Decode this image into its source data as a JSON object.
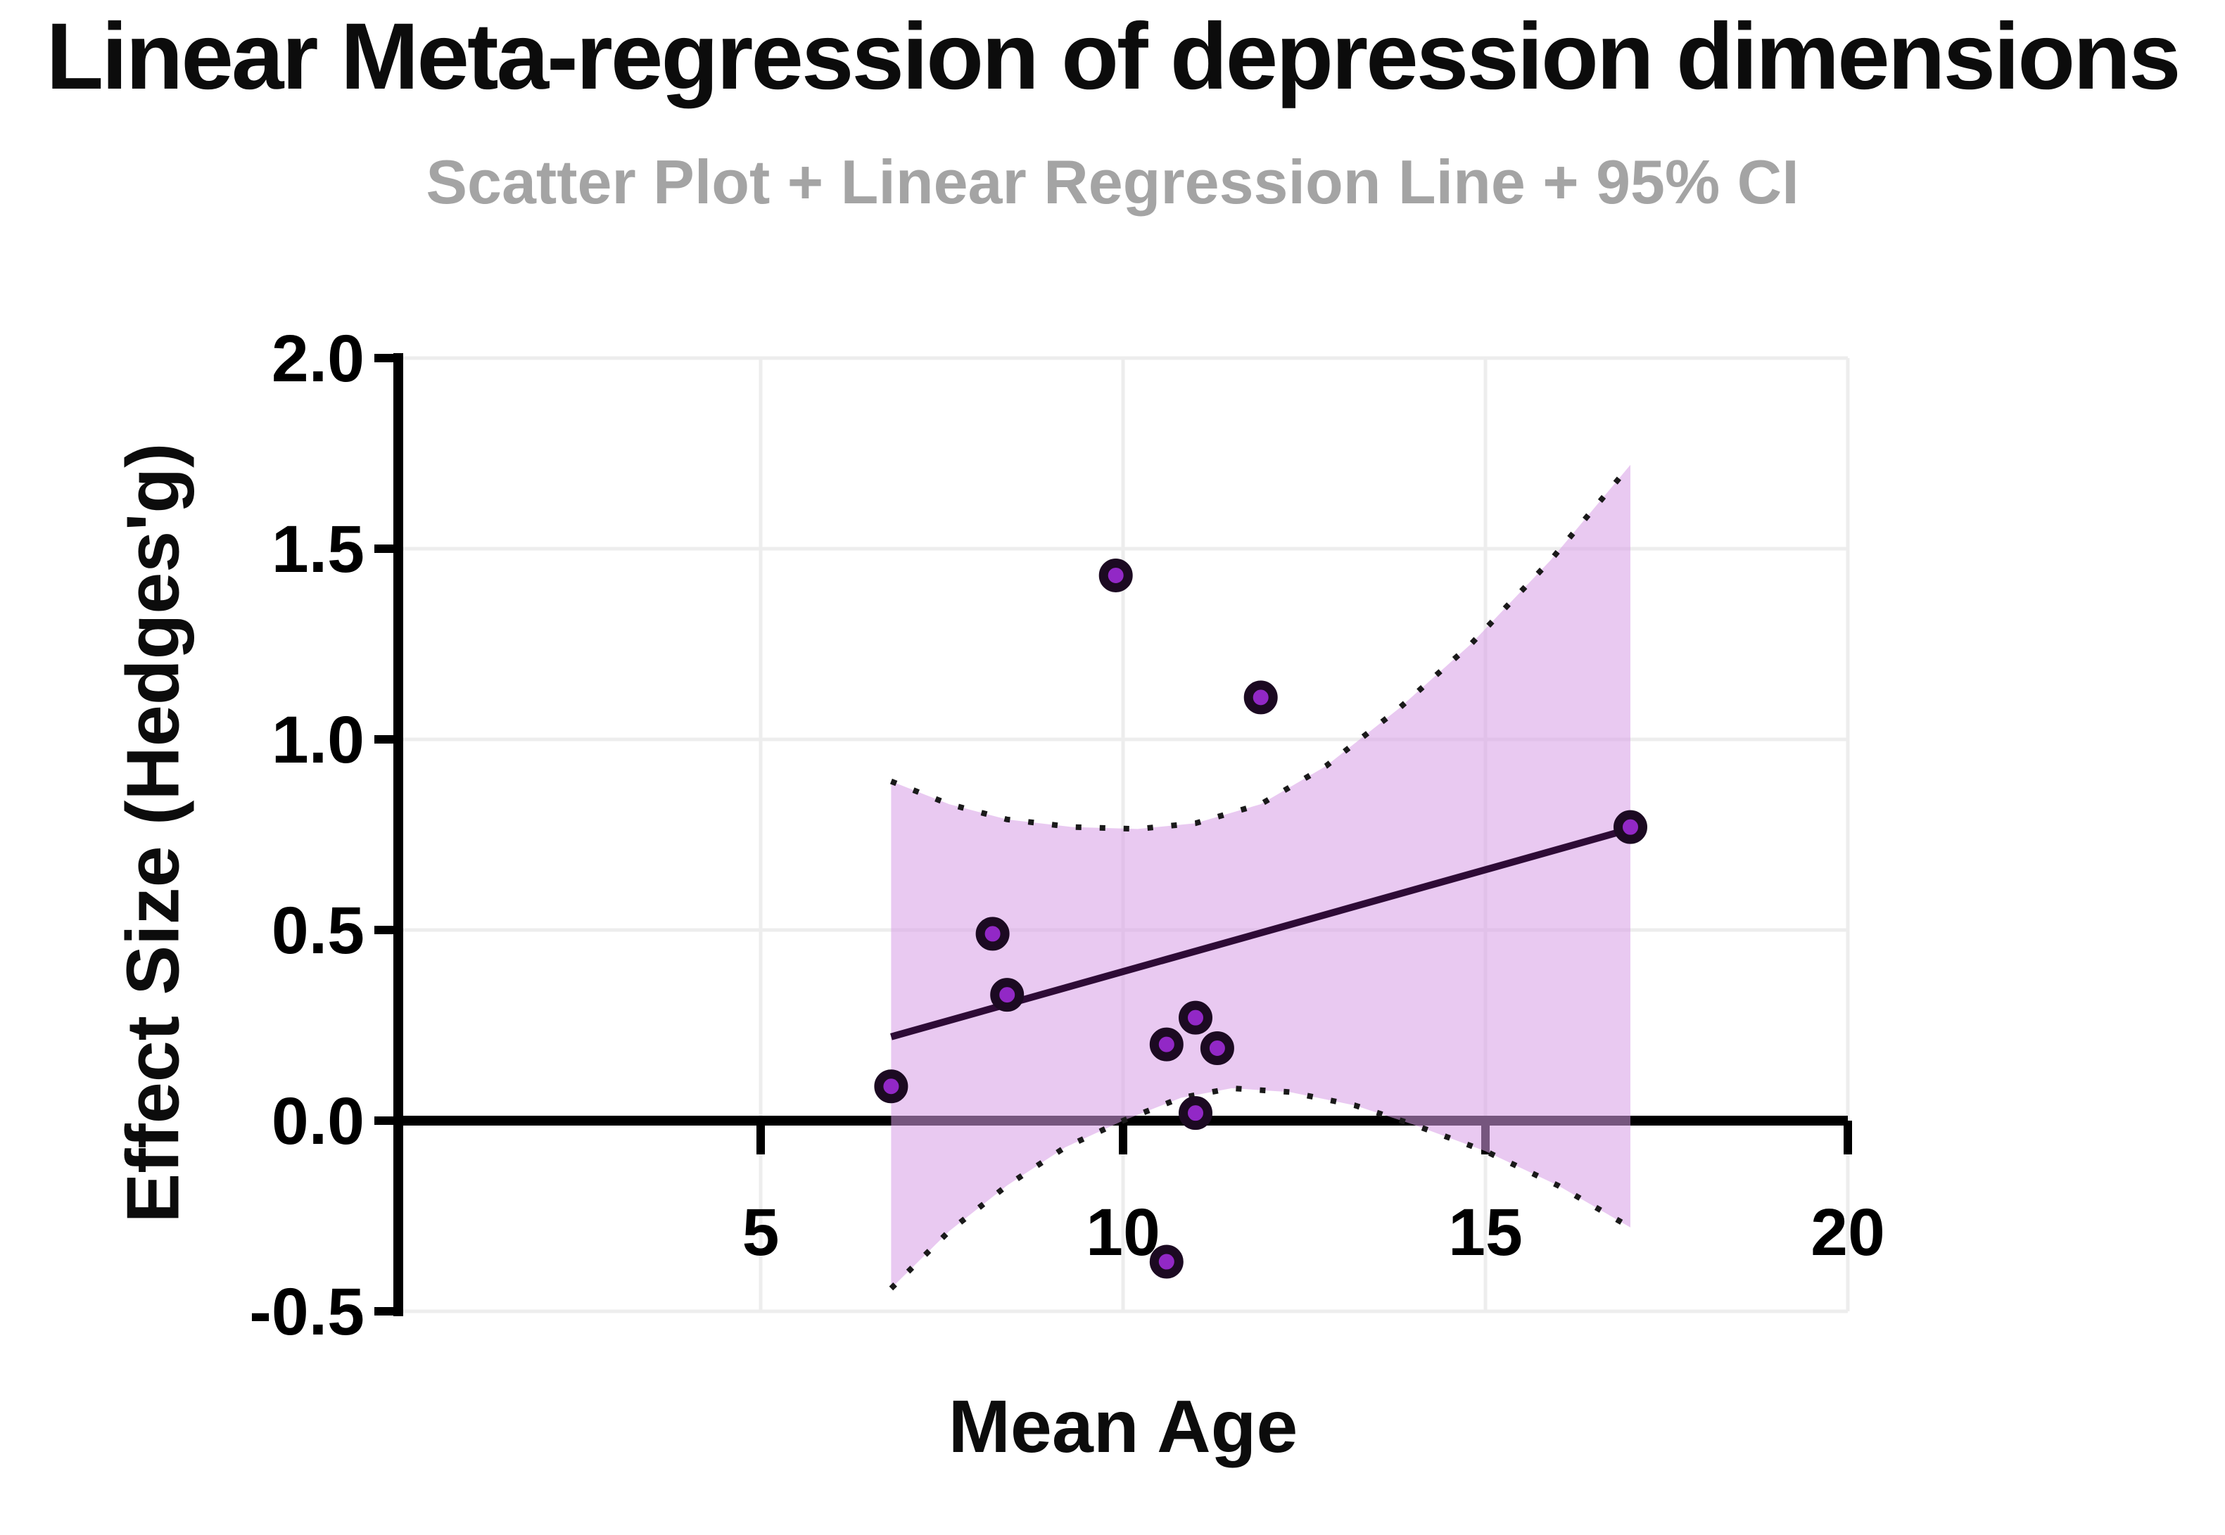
{
  "chart_data": {
    "type": "scatter",
    "title": "Linear Meta-regression of depression dimensions",
    "subtitle": "Scatter Plot + Linear Regression Line + 95% CI",
    "xlabel": "Mean Age",
    "ylabel": "Effect Size (Hedges'g)",
    "xlim": [
      0,
      20
    ],
    "ylim": [
      -0.5,
      2.0
    ],
    "grid": true,
    "legend_position": "none",
    "x_ticks": [
      {
        "value": 5,
        "label": "5"
      },
      {
        "value": 10,
        "label": "10"
      },
      {
        "value": 15,
        "label": "15"
      },
      {
        "value": 20,
        "label": "20"
      }
    ],
    "y_ticks": [
      {
        "value": 2.0,
        "label": "2.0"
      },
      {
        "value": 1.5,
        "label": "1.5"
      },
      {
        "value": 1.0,
        "label": "1.0"
      },
      {
        "value": 0.5,
        "label": "0.5"
      },
      {
        "value": 0.0,
        "label": "0.0"
      },
      {
        "value": -0.5,
        "label": "-0.5"
      }
    ],
    "series": [
      {
        "name": "study-points",
        "type": "scatter",
        "points": [
          [
            6.8,
            0.09
          ],
          [
            8.2,
            0.49
          ],
          [
            8.4,
            0.33
          ],
          [
            9.9,
            1.43
          ],
          [
            10.6,
            0.2
          ],
          [
            10.6,
            -0.37
          ],
          [
            11.0,
            0.27
          ],
          [
            11.0,
            0.02
          ],
          [
            11.3,
            0.19
          ],
          [
            11.9,
            1.11
          ],
          [
            17.0,
            0.77
          ]
        ]
      },
      {
        "name": "regression-line",
        "type": "line",
        "points": [
          [
            6.8,
            0.22
          ],
          [
            17.0,
            0.765
          ]
        ]
      },
      {
        "name": "ci-95-upper",
        "type": "dotted-line",
        "points": [
          [
            6.8,
            0.89
          ],
          [
            7.6,
            0.83
          ],
          [
            8.4,
            0.79
          ],
          [
            9.3,
            0.77
          ],
          [
            10.2,
            0.765
          ],
          [
            11.0,
            0.78
          ],
          [
            11.9,
            0.83
          ],
          [
            12.8,
            0.93
          ],
          [
            13.8,
            1.08
          ],
          [
            14.8,
            1.25
          ],
          [
            15.9,
            1.47
          ],
          [
            17.0,
            1.72
          ]
        ]
      },
      {
        "name": "ci-95-lower",
        "type": "dotted-line",
        "points": [
          [
            6.8,
            -0.44
          ],
          [
            7.6,
            -0.29
          ],
          [
            8.4,
            -0.17
          ],
          [
            9.2,
            -0.07
          ],
          [
            10.0,
            0.0
          ],
          [
            10.8,
            0.06
          ],
          [
            11.5,
            0.085
          ],
          [
            12.3,
            0.075
          ],
          [
            13.2,
            0.04
          ],
          [
            14.0,
            -0.01
          ],
          [
            15.0,
            -0.08
          ],
          [
            16.0,
            -0.17
          ],
          [
            17.0,
            -0.28
          ]
        ]
      }
    ],
    "colors": {
      "title": "#0c0c0c",
      "subtitle": "#a4a4a4",
      "axis": "#000000",
      "grid": "#ededed",
      "ci_fill": "#d79ce6",
      "ci_fill_opacity": 0.55,
      "ci_edge": "#1a1a1a",
      "regression_line": "#2e0b36",
      "point_fill": "#9228c6",
      "point_edge": "#1c0a22"
    }
  }
}
